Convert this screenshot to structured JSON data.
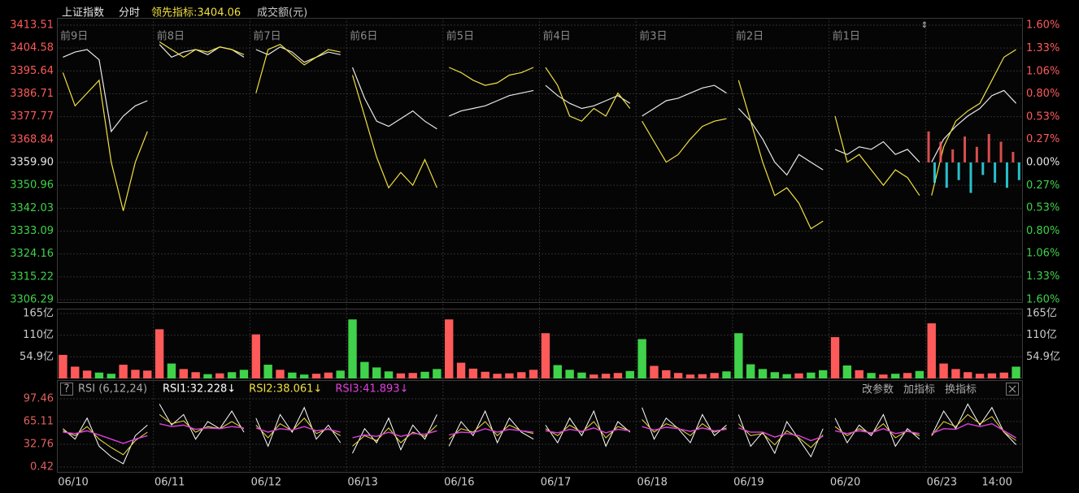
{
  "chart_data": {
    "type": "intraday",
    "header": {
      "title": "上证指数",
      "mode": "分时",
      "lead": "领先指标:3404.06",
      "volume_unit": "成交额(元)"
    },
    "ylim": [
      3306.29,
      3413.51
    ],
    "yticks": [
      3413.51,
      3404.58,
      3395.64,
      3386.71,
      3377.77,
      3368.84,
      {
        "value": 3359.9,
        "label": "3359.90"
      },
      3350.96,
      3342.03,
      3333.09,
      3324.16,
      3315.22,
      3306.29
    ],
    "y2lim": [
      -1.6,
      1.6
    ],
    "y2ticks": [
      {
        "value": 1.6,
        "label": "1.60%"
      },
      {
        "value": 1.33,
        "label": "1.33%"
      },
      {
        "value": 1.06,
        "label": "1.06%"
      },
      {
        "value": 0.8,
        "label": "0.80%"
      },
      {
        "value": 0.53,
        "label": "0.53%"
      },
      {
        "value": 0.27,
        "label": "0.27%"
      },
      {
        "value": 0,
        "label": "0.00%"
      },
      {
        "value": -0.27,
        "label": "0.27%"
      },
      {
        "value": -0.53,
        "label": "0.53%"
      },
      {
        "value": -0.8,
        "label": "0.80%"
      },
      {
        "value": -1.06,
        "label": "1.06%"
      },
      {
        "value": -1.33,
        "label": "1.33%"
      },
      {
        "value": -1.6,
        "label": "1.60%"
      }
    ],
    "price_color": "#e8e8e8",
    "lead_color": "#f0e040",
    "up_color": "#ff5a5a",
    "down_color": "#3fd24a",
    "diff_down_color": "#30e0f0",
    "days": [
      {
        "label": "前9日",
        "date": "06/10",
        "price": [
          3401,
          3403,
          3404,
          3400,
          3372,
          3378,
          3382,
          3384
        ],
        "lead": [
          3395,
          3382,
          3387,
          3392,
          3360,
          3341,
          3360,
          3372
        ],
        "volume": [
          60,
          30,
          20,
          15,
          12,
          35,
          22,
          20
        ],
        "rsi1": [
          55,
          40,
          70,
          30,
          15,
          5,
          45,
          60
        ],
        "rsi2": [
          52,
          45,
          58,
          40,
          28,
          18,
          38,
          50
        ],
        "rsi3": [
          50,
          48,
          52,
          46,
          40,
          34,
          40,
          45
        ]
      },
      {
        "label": "前8日",
        "date": "06/11",
        "price": [
          3406,
          3401,
          3403,
          3404,
          3402,
          3405,
          3404,
          3401
        ],
        "lead": [
          3407,
          3404,
          3401,
          3404,
          3403,
          3405,
          3404,
          3402
        ],
        "volume": [
          125,
          38,
          24,
          16,
          11,
          13,
          16,
          22
        ],
        "rsi1": [
          90,
          60,
          75,
          40,
          65,
          55,
          80,
          50
        ],
        "rsi2": [
          75,
          62,
          66,
          50,
          58,
          55,
          65,
          55
        ],
        "rsi3": [
          62,
          58,
          60,
          54,
          56,
          55,
          58,
          56
        ]
      },
      {
        "label": "前7日",
        "date": "06/12",
        "price": [
          3404,
          3402,
          3405,
          3403,
          3399,
          3401,
          3403,
          3402
        ],
        "lead": [
          3387,
          3404,
          3406,
          3402,
          3398,
          3401,
          3404,
          3403
        ],
        "volume": [
          112,
          35,
          22,
          15,
          10,
          12,
          15,
          20
        ],
        "rsi1": [
          70,
          30,
          75,
          50,
          85,
          40,
          60,
          35
        ],
        "rsi2": [
          60,
          42,
          62,
          52,
          70,
          48,
          55,
          45
        ],
        "rsi3": [
          56,
          50,
          55,
          53,
          58,
          52,
          54,
          50
        ]
      },
      {
        "label": "前6日",
        "date": "06/13",
        "price": [
          3397,
          3385,
          3376,
          3374,
          3377,
          3380,
          3376,
          3373
        ],
        "lead": [
          3394,
          3378,
          3362,
          3350,
          3356,
          3351,
          3361,
          3350
        ],
        "volume": [
          150,
          42,
          28,
          18,
          13,
          14,
          17,
          24
        ],
        "rsi1": [
          20,
          55,
          35,
          70,
          25,
          60,
          40,
          75
        ],
        "rsi2": [
          30,
          45,
          38,
          56,
          35,
          50,
          44,
          60
        ],
        "rsi3": [
          42,
          46,
          44,
          50,
          44,
          48,
          47,
          52
        ]
      },
      {
        "label": "前5日",
        "date": "06/16",
        "price": [
          3378,
          3380,
          3381,
          3382,
          3384,
          3386,
          3387,
          3388
        ],
        "lead": [
          3397,
          3395,
          3392,
          3390,
          3391,
          3394,
          3395,
          3397
        ],
        "volume": [
          150,
          40,
          25,
          17,
          12,
          13,
          16,
          22
        ],
        "rsi1": [
          30,
          65,
          45,
          80,
          35,
          70,
          50,
          40
        ],
        "rsi2": [
          40,
          55,
          50,
          65,
          45,
          60,
          52,
          48
        ],
        "rsi3": [
          46,
          50,
          49,
          55,
          50,
          54,
          52,
          50
        ]
      },
      {
        "label": "前4日",
        "date": "06/17",
        "price": [
          3390,
          3386,
          3383,
          3381,
          3382,
          3384,
          3386,
          3383
        ],
        "lead": [
          3397,
          3390,
          3378,
          3376,
          3381,
          3378,
          3387,
          3381
        ],
        "volume": [
          115,
          34,
          22,
          15,
          10,
          12,
          14,
          19
        ],
        "rsi1": [
          60,
          35,
          70,
          45,
          80,
          30,
          65,
          50
        ],
        "rsi2": [
          55,
          45,
          60,
          50,
          65,
          42,
          58,
          52
        ],
        "rsi3": [
          52,
          49,
          54,
          51,
          56,
          49,
          54,
          52
        ]
      },
      {
        "label": "前3日",
        "date": "06/18",
        "price": [
          3378,
          3381,
          3384,
          3385,
          3387,
          3389,
          3390,
          3387
        ],
        "lead": [
          3376,
          3368,
          3360,
          3363,
          3369,
          3374,
          3376,
          3377
        ],
        "volume": [
          100,
          32,
          21,
          14,
          10,
          11,
          14,
          18
        ],
        "rsi1": [
          85,
          40,
          70,
          55,
          35,
          75,
          45,
          60
        ],
        "rsi2": [
          68,
          50,
          62,
          56,
          45,
          62,
          50,
          56
        ],
        "rsi3": [
          58,
          53,
          57,
          55,
          51,
          56,
          52,
          54
        ]
      },
      {
        "label": "前2日",
        "date": "06/19",
        "price": [
          3381,
          3376,
          3369,
          3360,
          3355,
          3363,
          3360,
          3357
        ],
        "lead": [
          3392,
          3376,
          3360,
          3347,
          3350,
          3344,
          3334,
          3337
        ],
        "volume": [
          115,
          36,
          24,
          16,
          11,
          13,
          15,
          21
        ],
        "rsi1": [
          75,
          30,
          50,
          20,
          65,
          40,
          15,
          55
        ],
        "rsi2": [
          62,
          45,
          48,
          32,
          52,
          42,
          28,
          46
        ],
        "rsi3": [
          56,
          50,
          50,
          43,
          48,
          45,
          38,
          44
        ]
      },
      {
        "label": "前1日",
        "date": "06/20",
        "price": [
          3365,
          3363,
          3366,
          3365,
          3368,
          3363,
          3365,
          3360
        ],
        "lead": [
          3378,
          3360,
          3363,
          3357,
          3351,
          3357,
          3354,
          3347
        ],
        "volume": [
          105,
          33,
          21,
          14,
          10,
          12,
          14,
          19
        ],
        "rsi1": [
          70,
          35,
          60,
          45,
          75,
          30,
          55,
          40
        ],
        "rsi2": [
          58,
          45,
          55,
          48,
          62,
          42,
          52,
          45
        ],
        "rsi3": [
          52,
          48,
          52,
          49,
          55,
          48,
          51,
          48
        ]
      },
      {
        "label": null,
        "date": "06/23",
        "price": [
          3360,
          3369,
          3374,
          3378,
          3381,
          3386,
          3388,
          3383
        ],
        "lead": [
          3347,
          3366,
          3376,
          3380,
          3383,
          3392,
          3401,
          3404
        ],
        "volume": [
          140,
          38,
          24,
          16,
          12,
          13,
          15,
          30
        ],
        "rsi1": [
          45,
          80,
          55,
          90,
          60,
          85,
          50,
          32.228
        ],
        "rsi2": [
          45,
          65,
          58,
          75,
          62,
          72,
          50,
          38.061
        ],
        "rsi3": [
          48,
          55,
          54,
          62,
          58,
          62,
          52,
          41.893
        ]
      }
    ],
    "diff": [
      3372,
      3352,
      3368,
      3350,
      3365,
      3353,
      3370,
      3348,
      3366,
      3355,
      3371,
      3352,
      3368,
      3350,
      3364,
      3353
    ],
    "time_tick": "14:00",
    "volume": {
      "ylim": [
        0,
        165
      ],
      "yticks": [
        {
          "value": 165,
          "label": "165亿"
        },
        {
          "value": 110,
          "label": "110亿"
        },
        {
          "value": 54.9,
          "label": "54.9亿"
        }
      ]
    },
    "rsi": {
      "title": "RSI (6,12,24)",
      "help": "?",
      "ylim": [
        0.42,
        97.46
      ],
      "yticks": [
        97.46,
        65.11,
        32.76,
        0.42
      ],
      "legend": [
        {
          "label": "RSI1:32.228↓",
          "color": "#ffffff"
        },
        {
          "label": "RSI2:38.061↓",
          "color": "#f0e040"
        },
        {
          "label": "RSI3:41.893↓",
          "color": "#e040e0"
        }
      ]
    },
    "buttons": [
      "改参数",
      "加指标",
      "换指标"
    ]
  }
}
